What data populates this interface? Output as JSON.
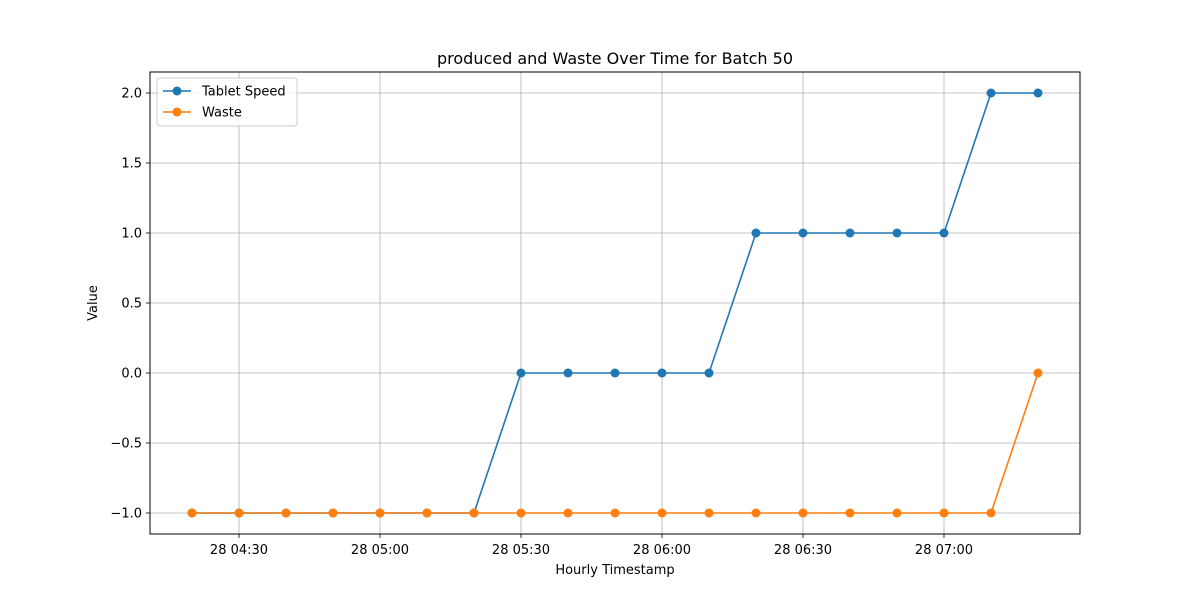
{
  "chart_data": {
    "type": "line",
    "title": "produced and Waste Over Time for Batch 50",
    "xlabel": "Hourly Timestamp",
    "ylabel": "Value",
    "x": [
      "28 04:20",
      "28 04:30",
      "28 04:40",
      "28 04:50",
      "28 05:00",
      "28 05:10",
      "28 05:20",
      "28 05:30",
      "28 05:40",
      "28 05:50",
      "28 06:00",
      "28 06:10",
      "28 06:20",
      "28 06:30",
      "28 06:40",
      "28 06:50",
      "28 07:00",
      "28 07:10",
      "28 07:20"
    ],
    "xticks": [
      "28 04:30",
      "28 05:00",
      "28 05:30",
      "28 06:00",
      "28 06:30",
      "28 07:00"
    ],
    "yticks": [
      "−1.0",
      "−0.5",
      "0.0",
      "0.5",
      "1.0",
      "1.5",
      "2.0"
    ],
    "ylim": [
      -1.15,
      2.15
    ],
    "grid": true,
    "legend_position": "top-left",
    "series": [
      {
        "name": "Tablet Speed",
        "color": "#1f77b4",
        "values": [
          -1,
          -1,
          -1,
          -1,
          -1,
          -1,
          -1,
          0,
          0,
          0,
          0,
          0,
          1,
          1,
          1,
          1,
          1,
          2,
          2
        ]
      },
      {
        "name": "Waste",
        "color": "#ff7f0e",
        "values": [
          -1,
          -1,
          -1,
          -1,
          -1,
          -1,
          -1,
          -1,
          -1,
          -1,
          -1,
          -1,
          -1,
          -1,
          -1,
          -1,
          -1,
          -1,
          0
        ]
      }
    ]
  }
}
